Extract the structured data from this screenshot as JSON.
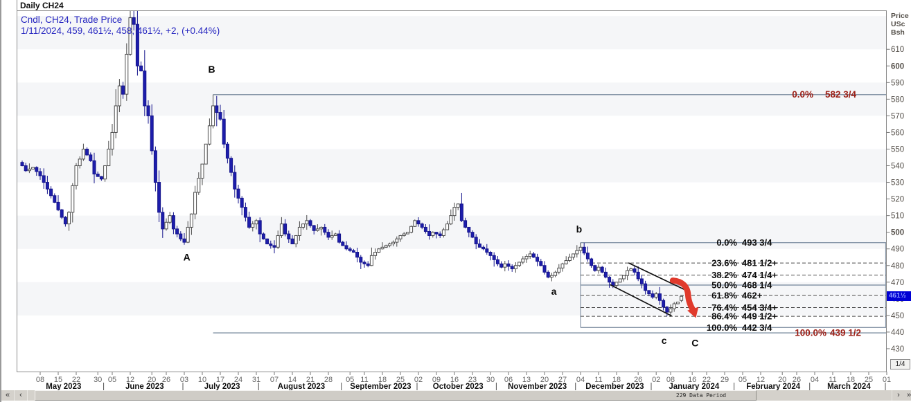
{
  "title_bar": {
    "title": "Daily CH24"
  },
  "legend": {
    "line1": "Cndl, CH24, Trade Price",
    "line2": "1/11/2024, 459, 461½, 458, 461½, +2, (+0.44%)"
  },
  "colors": {
    "legend_blue": "#2626c0",
    "candle_up_fill": "#ffffff",
    "candle_up_stroke": "#4d4d4d",
    "candle_down_fill": "#1d1dac",
    "candle_down_stroke": "#15158c",
    "fib_solid_line": "#8796a8",
    "fib_dashed_line": "#4a4a4a",
    "fib_text_black": "#0d0d0d",
    "fib_text_red": "#9c1f16",
    "arrow_red": "#e03a2c",
    "price_marker_bg": "#0000d4",
    "band_gray": "#f5f6f8"
  },
  "y_axis": {
    "header": [
      "Price",
      "USc",
      "Bsh"
    ],
    "ticks": [
      610,
      600,
      590,
      580,
      570,
      560,
      550,
      540,
      530,
      520,
      510,
      500,
      490,
      480,
      470,
      460,
      450,
      440,
      430
    ],
    "bold_ticks": [
      600,
      500
    ],
    "tick_size_label": "1/4",
    "last_price_label": "461½",
    "last_price": 461.5
  },
  "x_axis": {
    "week_ticks": [
      {
        "label": "08",
        "i": 5
      },
      {
        "label": "15",
        "i": 10
      },
      {
        "label": "22",
        "i": 15
      },
      {
        "label": "30",
        "i": 21
      },
      {
        "label": "05",
        "i": 25
      },
      {
        "label": "12",
        "i": 30
      },
      {
        "label": "20",
        "i": 36
      },
      {
        "label": "26",
        "i": 40
      },
      {
        "label": "03",
        "i": 45
      },
      {
        "label": "10",
        "i": 50
      },
      {
        "label": "17",
        "i": 55
      },
      {
        "label": "24",
        "i": 60
      },
      {
        "label": "31",
        "i": 65
      },
      {
        "label": "07",
        "i": 70
      },
      {
        "label": "14",
        "i": 75
      },
      {
        "label": "21",
        "i": 80
      },
      {
        "label": "28",
        "i": 85
      },
      {
        "label": "05",
        "i": 91
      },
      {
        "label": "11",
        "i": 95
      },
      {
        "label": "18",
        "i": 100
      },
      {
        "label": "25",
        "i": 105
      },
      {
        "label": "02",
        "i": 110
      },
      {
        "label": "09",
        "i": 115
      },
      {
        "label": "16",
        "i": 120
      },
      {
        "label": "23",
        "i": 125
      },
      {
        "label": "30",
        "i": 130
      },
      {
        "label": "06",
        "i": 135
      },
      {
        "label": "13",
        "i": 140
      },
      {
        "label": "20",
        "i": 145
      },
      {
        "label": "27",
        "i": 150
      },
      {
        "label": "04",
        "i": 155
      },
      {
        "label": "11",
        "i": 160
      },
      {
        "label": "18",
        "i": 165
      },
      {
        "label": "26",
        "i": 171
      },
      {
        "label": "02",
        "i": 176
      },
      {
        "label": "08",
        "i": 180
      },
      {
        "label": "16",
        "i": 186
      },
      {
        "label": "22",
        "i": 190
      },
      {
        "label": "29",
        "i": 195
      },
      {
        "label": "05",
        "i": 200
      },
      {
        "label": "12",
        "i": 205
      },
      {
        "label": "20",
        "i": 211
      },
      {
        "label": "26",
        "i": 215
      },
      {
        "label": "04",
        "i": 220
      },
      {
        "label": "11",
        "i": 225
      },
      {
        "label": "18",
        "i": 230
      },
      {
        "label": "25",
        "i": 235
      },
      {
        "label": "01",
        "i": 240
      }
    ],
    "months": [
      {
        "label": "May 2023",
        "s": 0,
        "e": 23
      },
      {
        "label": "June 2023",
        "s": 23,
        "e": 45
      },
      {
        "label": "July 2023",
        "s": 45,
        "e": 66
      },
      {
        "label": "August 2023",
        "s": 66,
        "e": 89
      },
      {
        "label": "September 2023",
        "s": 89,
        "e": 110
      },
      {
        "label": "October 2023",
        "s": 110,
        "e": 132
      },
      {
        "label": "November 2023",
        "s": 132,
        "e": 154
      },
      {
        "label": "December 2023",
        "s": 154,
        "e": 175
      },
      {
        "label": "January 2024",
        "s": 175,
        "e": 198
      },
      {
        "label": "February 2024",
        "s": 198,
        "e": 219
      },
      {
        "label": "March 2024",
        "s": 219,
        "e": 240
      }
    ]
  },
  "chart_data": {
    "type": "candlestick",
    "instrument": "CH24",
    "period": "Daily",
    "price_unit": "USc/Bsh",
    "visible_range": {
      "first_date": "5/01/2023",
      "last_date": "1/11/2024",
      "price_low": 430,
      "price_high": 615
    },
    "last_candle": {
      "date": "1/11/2024",
      "open": 459,
      "high": 461.5,
      "low": 458,
      "close": 461.5,
      "net_change": "+2",
      "pct_change": "+0.44%"
    },
    "anchors_note": "approximate close prices read from chart; index = weekdays since 5/1/2023",
    "anchors": [
      [
        0,
        540
      ],
      [
        1,
        537
      ],
      [
        3,
        539
      ],
      [
        5,
        534
      ],
      [
        7,
        526
      ],
      [
        9,
        518
      ],
      [
        11,
        509
      ],
      [
        12,
        505
      ],
      [
        13,
        512
      ],
      [
        14,
        528
      ],
      [
        15,
        540
      ],
      [
        16,
        544
      ],
      [
        17,
        550
      ],
      [
        19,
        543
      ],
      [
        20,
        535
      ],
      [
        22,
        532
      ],
      [
        23,
        540
      ],
      [
        25,
        560
      ],
      [
        26,
        576
      ],
      [
        27,
        588
      ],
      [
        28,
        583
      ],
      [
        29,
        607
      ],
      [
        30,
        629
      ],
      [
        31,
        625
      ],
      [
        32,
        600
      ],
      [
        33,
        597
      ],
      [
        34,
        576
      ],
      [
        35,
        570
      ],
      [
        36,
        549
      ],
      [
        37,
        530
      ],
      [
        38,
        512
      ],
      [
        39,
        502
      ],
      [
        41,
        510
      ],
      [
        42,
        502
      ],
      [
        44,
        496
      ],
      [
        45,
        494
      ],
      [
        46,
        503
      ],
      [
        47,
        511
      ],
      [
        48,
        524
      ],
      [
        50,
        541
      ],
      [
        51,
        553
      ],
      [
        52,
        564
      ],
      [
        53,
        576
      ],
      [
        55,
        568
      ],
      [
        56,
        553
      ],
      [
        58,
        536
      ],
      [
        59,
        526
      ],
      [
        61,
        515
      ],
      [
        62,
        509
      ],
      [
        63,
        503
      ],
      [
        65,
        507
      ],
      [
        66,
        499
      ],
      [
        68,
        493
      ],
      [
        70,
        491
      ],
      [
        72,
        505
      ],
      [
        73,
        499
      ],
      [
        75,
        493
      ],
      [
        77,
        503
      ],
      [
        79,
        507
      ],
      [
        81,
        501
      ],
      [
        83,
        503
      ],
      [
        85,
        497
      ],
      [
        87,
        499
      ],
      [
        88,
        494
      ],
      [
        90,
        490
      ],
      [
        92,
        488
      ],
      [
        94,
        482
      ],
      [
        96,
        480
      ],
      [
        97,
        486
      ],
      [
        99,
        490
      ],
      [
        101,
        492
      ],
      [
        103,
        494
      ],
      [
        105,
        498
      ],
      [
        107,
        500
      ],
      [
        109,
        507
      ],
      [
        111,
        503
      ],
      [
        113,
        498
      ],
      [
        114,
        500
      ],
      [
        116,
        498
      ],
      [
        118,
        505
      ],
      [
        120,
        515
      ],
      [
        121,
        517
      ],
      [
        122,
        507
      ],
      [
        123,
        503
      ],
      [
        124,
        500
      ],
      [
        125,
        497
      ],
      [
        126,
        493
      ],
      [
        127,
        491
      ],
      [
        128,
        490
      ],
      [
        130,
        486
      ],
      [
        132,
        481
      ],
      [
        133,
        479
      ],
      [
        134,
        481
      ],
      [
        136,
        478
      ],
      [
        137,
        480
      ],
      [
        139,
        484
      ],
      [
        141,
        487
      ],
      [
        142,
        485
      ],
      [
        144,
        480
      ],
      [
        145,
        476
      ],
      [
        146,
        473
      ],
      [
        147,
        474
      ],
      [
        148,
        476
      ],
      [
        150,
        481
      ],
      [
        152,
        485
      ],
      [
        154,
        489
      ],
      [
        155,
        491
      ],
      [
        157,
        484
      ],
      [
        158,
        480
      ],
      [
        159,
        477
      ],
      [
        160,
        479
      ],
      [
        161,
        476
      ],
      [
        162,
        473
      ],
      [
        163,
        470
      ],
      [
        164,
        468
      ],
      [
        165,
        470
      ],
      [
        166,
        472
      ],
      [
        167,
        474
      ],
      [
        168,
        477
      ],
      [
        169,
        478
      ],
      [
        170,
        476
      ],
      [
        171,
        472
      ],
      [
        172,
        469
      ],
      [
        173,
        465
      ],
      [
        174,
        463
      ],
      [
        175,
        461
      ],
      [
        176,
        463
      ],
      [
        177,
        459
      ],
      [
        178,
        455
      ],
      [
        179,
        452
      ],
      [
        180,
        454
      ],
      [
        181,
        457
      ],
      [
        182,
        458
      ],
      [
        183,
        461.5
      ]
    ],
    "wick_overrides": {
      "30": {
        "high": 634
      },
      "45": {
        "low": 492.5
      },
      "53": {
        "high": 582.75
      },
      "147": {
        "low": 470.5
      },
      "155": {
        "high": 493.75
      },
      "179": {
        "low": 449.5
      },
      "183": {
        "open": 459,
        "high": 461.5,
        "low": 458,
        "close": 461.5
      }
    }
  },
  "fib_minor": {
    "name": "retracement-from-b",
    "start_idx": 155,
    "levels": [
      {
        "pct": "0.0%",
        "value": "493 3/4",
        "price": 493.75,
        "solid": true
      },
      {
        "pct": "23.6%",
        "value": "481 1/2+",
        "price": 481.5,
        "solid": false
      },
      {
        "pct": "38.2%",
        "value": "474 1/4+",
        "price": 474.25,
        "solid": false
      },
      {
        "pct": "50.0%",
        "value": "468 1/4",
        "price": 468.25,
        "solid": true
      },
      {
        "pct": "61.8%",
        "value": "462+",
        "price": 462,
        "solid": false
      },
      {
        "pct": "76.4%",
        "value": "454 3/4+",
        "price": 454.75,
        "solid": false
      },
      {
        "pct": "86.4%",
        "value": "449 1/2+",
        "price": 449.5,
        "solid": false
      },
      {
        "pct": "100.0%",
        "value": "442 3/4",
        "price": 442.75,
        "solid": true
      }
    ],
    "label_pct_x": 1062,
    "label_val_x": 1069
  },
  "fib_major": {
    "name": "retracement-from-B",
    "start_idx": 53,
    "levels": [
      {
        "pct": "0.0%",
        "value": "582 3/4",
        "price": 582.75,
        "pct_x": 1172,
        "val_x": 1189
      },
      {
        "pct": "100.0%",
        "value": "439 1/2",
        "price": 439.5,
        "pct_x": 1191,
        "val_x": 1196
      }
    ]
  },
  "annotations": {
    "letters": [
      {
        "t": "B",
        "idx": 52.6,
        "price": 598
      },
      {
        "t": "A",
        "idx": 45.7,
        "price": 485
      },
      {
        "t": "b",
        "idx": 154.6,
        "price": 502
      },
      {
        "t": "a",
        "idx": 147.6,
        "price": 464.5
      },
      {
        "t": "c",
        "idx": 178.2,
        "price": 435
      },
      {
        "t": "C",
        "idx": 186.8,
        "price": 433.5
      }
    ],
    "channel": {
      "upper": {
        "i1": 168.3,
        "p1": 481.6,
        "i2": 183.8,
        "p2": 465.6
      },
      "lower": {
        "i1": 163.2,
        "p1": 468.5,
        "i2": 180.3,
        "p2": 449.7
      }
    },
    "arrow": {
      "from_idx": 180.6,
      "from_price": 471,
      "to_idx": 187,
      "to_price": 448.5
    }
  },
  "scrollbar": {
    "label": "229 Data Period",
    "btn_first": "«",
    "btn_prev": "‹",
    "btn_next": "›",
    "btn_last": "»"
  }
}
